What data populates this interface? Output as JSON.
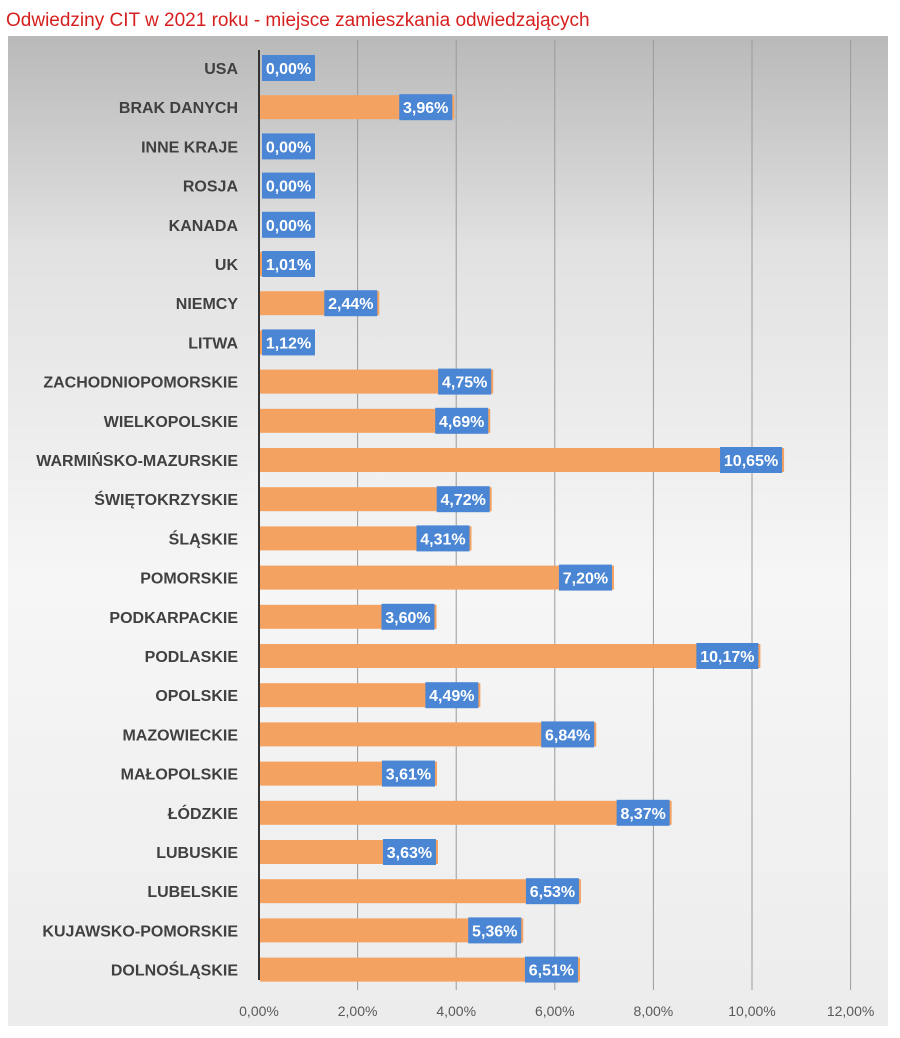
{
  "title": "Odwiedziny CIT w 2021 roku - miejsce zamieszkania odwiedzających",
  "colors": {
    "title": "#d62020",
    "bar": "#f4a261",
    "label_bg": "#4a86d4",
    "label_text": "#ffffff",
    "category_text": "#404040",
    "tick_text": "#595959",
    "gridline": "#9a9a9a"
  },
  "chart_data": {
    "type": "bar",
    "orientation": "horizontal",
    "title": "Odwiedziny CIT w 2021 roku - miejsce zamieszkania odwiedzających",
    "xlabel": "",
    "ylabel": "",
    "xlim": [
      0,
      12
    ],
    "x_ticks": [
      "0,00%",
      "2,00%",
      "4,00%",
      "6,00%",
      "8,00%",
      "10,00%",
      "12,00%"
    ],
    "grid": "vertical",
    "categories": [
      "USA",
      "BRAK DANYCH",
      "INNE KRAJE",
      "ROSJA",
      "KANADA",
      "UK",
      "NIEMCY",
      "LITWA",
      "ZACHODNIOPOMORSKIE",
      "WIELKOPOLSKIE",
      "WARMIŃSKO-MAZURSKIE",
      "ŚWIĘTOKRZYSKIE",
      "ŚLĄSKIE",
      "POMORSKIE",
      "PODKARPACKIE",
      "PODLASKIE",
      "OPOLSKIE",
      "MAZOWIECKIE",
      "MAŁOPOLSKIE",
      "ŁÓDZKIE",
      "LUBUSKIE",
      "LUBELSKIE",
      "KUJAWSKO-POMORSKIE",
      "DOLNOŚLĄSKIE"
    ],
    "values": [
      0,
      3.96,
      0,
      0,
      0,
      1.01,
      2.44,
      1.12,
      4.75,
      4.69,
      10.65,
      4.72,
      4.31,
      7.2,
      3.6,
      10.17,
      4.49,
      6.84,
      3.61,
      8.37,
      3.63,
      6.53,
      5.36,
      6.51
    ],
    "data_labels": [
      "0,00%",
      "3,96%",
      "0,00%",
      "0,00%",
      "0,00%",
      "1,01%",
      "2,44%",
      "1,12%",
      "4,75%",
      "4,69%",
      "10,65%",
      "4,72%",
      "4,31%",
      "7,20%",
      "3,60%",
      "10,17%",
      "4,49%",
      "6,84%",
      "3,61%",
      "8,37%",
      "3,63%",
      "6,53%",
      "5,36%",
      "6,51%"
    ]
  }
}
